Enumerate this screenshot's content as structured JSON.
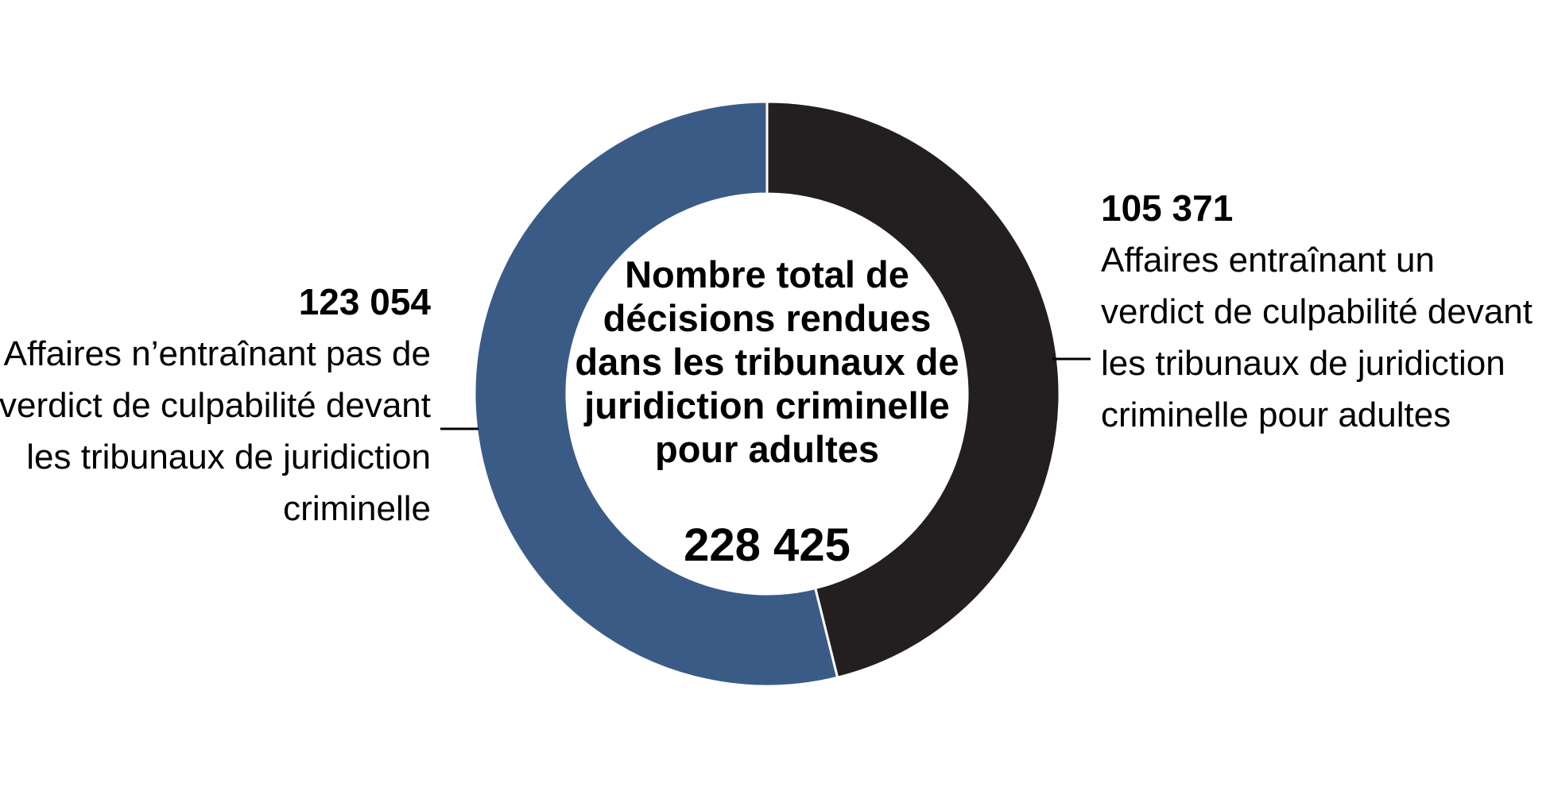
{
  "chart_data": {
    "type": "pie",
    "donut": true,
    "center": {
      "label": "Nombre total de décisions rendues dans les tribunaux de juridiction criminelle pour adultes",
      "total": "228 425"
    },
    "slices": [
      {
        "value": 105371,
        "value_label": "105 371",
        "label": "Affaires entraînant un verdict de culpabilité devant les tribunaux de juridiction criminelle pour adultes",
        "color": "#231f20"
      },
      {
        "value": 123054,
        "value_label": "123 054",
        "label": "Affaires n’entraînant pas de verdict de culpabilité devant les tribunaux de juridiction criminelle",
        "color": "#3b5b87"
      }
    ]
  }
}
